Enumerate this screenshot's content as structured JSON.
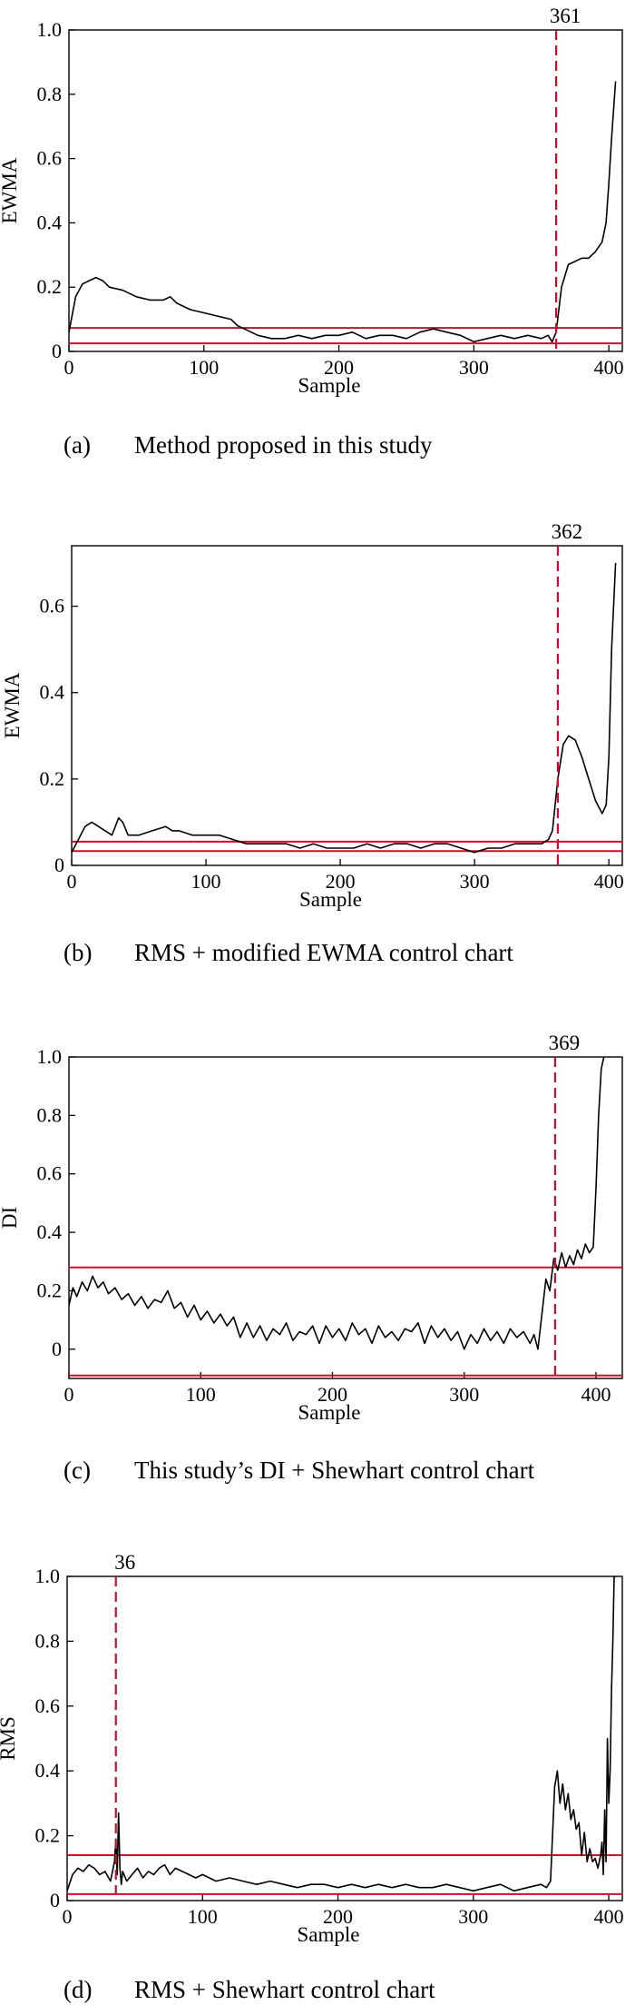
{
  "chart_data": [
    {
      "id": "a",
      "type": "line",
      "caption_letter": "(a)",
      "caption_text": "Method proposed in this study",
      "xlabel": "Sample",
      "ylabel": "EWMA",
      "xlim": [
        0,
        410
      ],
      "ylim": [
        0,
        1.0
      ],
      "xticks": [
        0,
        100,
        200,
        300,
        400
      ],
      "xtick_labels": [
        "0",
        "100",
        "200",
        "300",
        "400"
      ],
      "yticks": [
        0,
        0.2,
        0.4,
        0.6,
        0.8,
        1.0
      ],
      "ytick_labels": [
        "0",
        "0.2",
        "0.4",
        "0.6",
        "0.8",
        "1.0"
      ],
      "control_limits": [
        0.073,
        0.025
      ],
      "change_point": 361,
      "change_point_label": "361",
      "series": {
        "x": [
          0,
          5,
          10,
          15,
          20,
          25,
          30,
          40,
          50,
          60,
          70,
          75,
          80,
          90,
          100,
          110,
          120,
          125,
          130,
          140,
          150,
          160,
          170,
          180,
          190,
          200,
          210,
          220,
          230,
          240,
          250,
          260,
          270,
          280,
          290,
          300,
          310,
          320,
          330,
          340,
          350,
          355,
          358,
          361,
          365,
          370,
          375,
          380,
          385,
          390,
          395,
          398,
          400,
          402,
          405
        ],
        "y": [
          0.06,
          0.17,
          0.21,
          0.22,
          0.23,
          0.22,
          0.2,
          0.19,
          0.17,
          0.16,
          0.16,
          0.17,
          0.15,
          0.13,
          0.12,
          0.11,
          0.1,
          0.08,
          0.07,
          0.05,
          0.04,
          0.04,
          0.05,
          0.04,
          0.05,
          0.05,
          0.06,
          0.04,
          0.05,
          0.05,
          0.04,
          0.06,
          0.07,
          0.06,
          0.05,
          0.03,
          0.04,
          0.05,
          0.04,
          0.05,
          0.04,
          0.05,
          0.03,
          0.06,
          0.2,
          0.27,
          0.28,
          0.29,
          0.29,
          0.31,
          0.34,
          0.4,
          0.52,
          0.66,
          0.84
        ]
      }
    },
    {
      "id": "b",
      "type": "line",
      "caption_letter": "(b)",
      "caption_text": "RMS + modified EWMA control chart",
      "xlabel": "Sample",
      "ylabel": "EWMA",
      "xlim": [
        0,
        410
      ],
      "ylim": [
        0,
        0.74
      ],
      "xticks": [
        0,
        100,
        200,
        300,
        400
      ],
      "xtick_labels": [
        "0",
        "100",
        "200",
        "300",
        "400"
      ],
      "yticks": [
        0,
        0.2,
        0.4,
        0.6
      ],
      "ytick_labels": [
        "0",
        "0.2",
        "0.4",
        "0.6"
      ],
      "control_limits": [
        0.055,
        0.033
      ],
      "change_point": 362,
      "change_point_label": "362",
      "series": {
        "x": [
          0,
          5,
          10,
          15,
          20,
          25,
          30,
          35,
          38,
          42,
          50,
          60,
          70,
          75,
          80,
          90,
          100,
          110,
          120,
          130,
          140,
          150,
          160,
          170,
          180,
          190,
          200,
          210,
          220,
          230,
          240,
          250,
          260,
          270,
          280,
          290,
          300,
          310,
          320,
          330,
          340,
          350,
          355,
          358,
          362,
          366,
          370,
          375,
          380,
          385,
          390,
          395,
          398,
          400,
          402,
          405
        ],
        "y": [
          0.03,
          0.06,
          0.09,
          0.1,
          0.09,
          0.08,
          0.07,
          0.11,
          0.1,
          0.07,
          0.07,
          0.08,
          0.09,
          0.08,
          0.08,
          0.07,
          0.07,
          0.07,
          0.06,
          0.05,
          0.05,
          0.05,
          0.05,
          0.04,
          0.05,
          0.04,
          0.04,
          0.04,
          0.05,
          0.04,
          0.05,
          0.05,
          0.04,
          0.05,
          0.05,
          0.04,
          0.03,
          0.04,
          0.04,
          0.05,
          0.05,
          0.05,
          0.06,
          0.08,
          0.2,
          0.28,
          0.3,
          0.29,
          0.25,
          0.2,
          0.15,
          0.12,
          0.14,
          0.25,
          0.5,
          0.7
        ]
      }
    },
    {
      "id": "c",
      "type": "line",
      "caption_letter": "(c)",
      "caption_text": "This study’s DI + Shewhart control chart",
      "xlabel": "Sample",
      "ylabel": "DI",
      "xlim": [
        0,
        420
      ],
      "ylim": [
        -0.1,
        1.0
      ],
      "xticks": [
        0,
        100,
        200,
        300,
        400
      ],
      "xtick_labels": [
        "0",
        "100",
        "200",
        "300",
        "400"
      ],
      "yticks": [
        0,
        0.2,
        0.4,
        0.6,
        0.8,
        1.0
      ],
      "ytick_labels": [
        "0",
        "0.2",
        "0.4",
        "0.6",
        "0.8",
        "1.0"
      ],
      "control_limits": [
        0.28,
        -0.09
      ],
      "change_point": 369,
      "change_point_label": "369",
      "series": {
        "x": [
          0,
          3,
          6,
          10,
          14,
          18,
          22,
          26,
          30,
          35,
          40,
          45,
          50,
          55,
          60,
          65,
          70,
          75,
          80,
          85,
          90,
          95,
          100,
          105,
          110,
          115,
          120,
          125,
          130,
          135,
          140,
          145,
          150,
          155,
          160,
          165,
          170,
          175,
          180,
          185,
          190,
          195,
          200,
          205,
          210,
          215,
          220,
          225,
          230,
          235,
          240,
          245,
          250,
          255,
          260,
          265,
          270,
          275,
          280,
          285,
          290,
          295,
          300,
          305,
          310,
          315,
          320,
          325,
          330,
          335,
          340,
          345,
          350,
          353,
          356,
          359,
          362,
          365,
          368,
          371,
          374,
          377,
          380,
          383,
          386,
          389,
          392,
          395,
          398,
          400,
          402,
          404,
          406
        ],
        "y": [
          0.15,
          0.21,
          0.18,
          0.23,
          0.2,
          0.25,
          0.21,
          0.23,
          0.19,
          0.21,
          0.17,
          0.19,
          0.15,
          0.18,
          0.14,
          0.17,
          0.16,
          0.2,
          0.14,
          0.16,
          0.11,
          0.15,
          0.1,
          0.13,
          0.09,
          0.12,
          0.08,
          0.11,
          0.04,
          0.09,
          0.04,
          0.08,
          0.03,
          0.07,
          0.05,
          0.09,
          0.03,
          0.06,
          0.05,
          0.08,
          0.02,
          0.08,
          0.04,
          0.07,
          0.03,
          0.09,
          0.05,
          0.07,
          0.02,
          0.08,
          0.04,
          0.06,
          0.03,
          0.07,
          0.06,
          0.09,
          0.02,
          0.08,
          0.04,
          0.07,
          0.03,
          0.06,
          0.0,
          0.05,
          0.02,
          0.07,
          0.03,
          0.06,
          0.02,
          0.07,
          0.04,
          0.06,
          0.02,
          0.05,
          0.0,
          0.12,
          0.24,
          0.2,
          0.31,
          0.27,
          0.33,
          0.28,
          0.32,
          0.29,
          0.34,
          0.31,
          0.36,
          0.33,
          0.35,
          0.55,
          0.8,
          0.96,
          1.0
        ]
      }
    },
    {
      "id": "d",
      "type": "line",
      "caption_letter": "(d)",
      "caption_text": "RMS + Shewhart control chart",
      "xlabel": "Sample",
      "ylabel": "RMS",
      "xlim": [
        0,
        410
      ],
      "ylim": [
        0,
        1.0
      ],
      "xticks": [
        0,
        100,
        200,
        300,
        400
      ],
      "xtick_labels": [
        "0",
        "100",
        "200",
        "300",
        "400"
      ],
      "yticks": [
        0,
        0.2,
        0.4,
        0.6,
        0.8,
        1.0
      ],
      "ytick_labels": [
        "0",
        "0.2",
        "0.4",
        "0.6",
        "0.8",
        "1.0"
      ],
      "control_limits": [
        0.14,
        0.02
      ],
      "change_point": 36,
      "change_point_label": "36",
      "series": {
        "x": [
          0,
          4,
          8,
          12,
          16,
          20,
          24,
          28,
          32,
          35,
          36,
          37,
          38,
          39,
          40,
          41,
          44,
          48,
          52,
          56,
          60,
          64,
          68,
          72,
          76,
          80,
          85,
          90,
          95,
          100,
          110,
          120,
          130,
          140,
          150,
          160,
          170,
          180,
          190,
          200,
          210,
          220,
          230,
          240,
          250,
          260,
          270,
          280,
          290,
          300,
          310,
          320,
          330,
          340,
          350,
          354,
          357,
          360,
          362,
          364,
          366,
          368,
          370,
          372,
          374,
          376,
          378,
          380,
          382,
          384,
          386,
          388,
          390,
          392,
          394,
          395,
          396,
          397,
          398,
          399,
          400,
          401,
          402,
          403,
          404,
          405
        ],
        "y": [
          0.03,
          0.08,
          0.1,
          0.09,
          0.11,
          0.1,
          0.08,
          0.09,
          0.06,
          0.12,
          0.19,
          0.08,
          0.27,
          0.1,
          0.05,
          0.09,
          0.06,
          0.08,
          0.1,
          0.07,
          0.09,
          0.08,
          0.1,
          0.11,
          0.08,
          0.1,
          0.09,
          0.08,
          0.07,
          0.08,
          0.06,
          0.07,
          0.06,
          0.05,
          0.06,
          0.05,
          0.04,
          0.05,
          0.05,
          0.04,
          0.05,
          0.04,
          0.05,
          0.04,
          0.05,
          0.04,
          0.04,
          0.05,
          0.04,
          0.03,
          0.04,
          0.05,
          0.03,
          0.04,
          0.05,
          0.04,
          0.06,
          0.35,
          0.4,
          0.3,
          0.36,
          0.28,
          0.33,
          0.25,
          0.28,
          0.22,
          0.24,
          0.14,
          0.21,
          0.12,
          0.16,
          0.12,
          0.13,
          0.1,
          0.14,
          0.18,
          0.08,
          0.28,
          0.12,
          0.5,
          0.3,
          0.4,
          0.65,
          0.8,
          1.0,
          1.0
        ]
      }
    }
  ]
}
